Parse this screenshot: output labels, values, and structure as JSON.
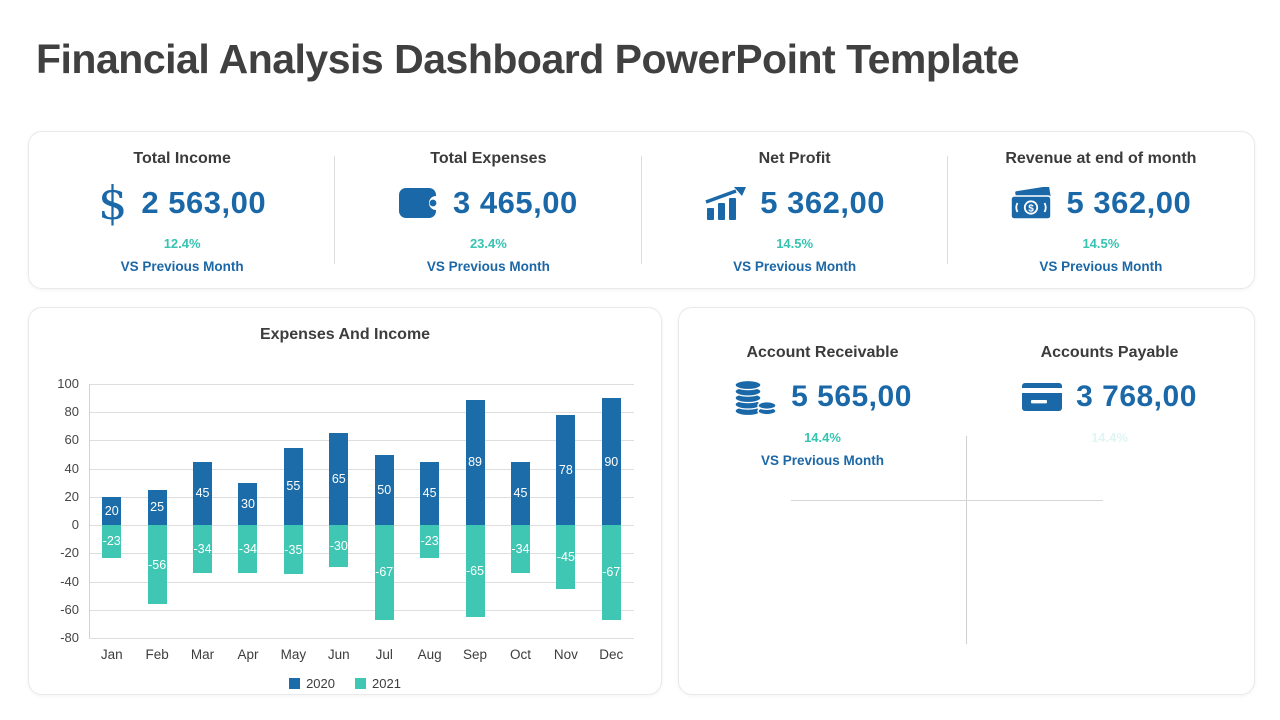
{
  "page": {
    "title": "Financial Analysis Dashboard PowerPoint Template"
  },
  "colors": {
    "primary_blue": "#1a68a8",
    "teal_accent": "#36c3b1",
    "bar_blue_2020": "#1b6ca8",
    "bar_teal_2021": "#40c7b4",
    "title_gray": "#404040"
  },
  "kpis": [
    {
      "label": "Total Income",
      "icon": "dollar-icon",
      "value": "2 563,00",
      "percent": "12.4%",
      "caption": "VS Previous Month"
    },
    {
      "label": "Total Expenses",
      "icon": "wallet-icon",
      "value": "3 465,00",
      "percent": "23.4%",
      "caption": "VS Previous Month"
    },
    {
      "label": "Net Profit",
      "icon": "growth-chart-icon",
      "value": "5 362,00",
      "percent": "14.5%",
      "caption": "VS Previous Month"
    },
    {
      "label": "Revenue at end of month",
      "icon": "banknotes-icon",
      "value": "5 362,00",
      "percent": "14.5%",
      "caption": "VS Previous Month"
    }
  ],
  "accounts": [
    {
      "label": "Account Receivable",
      "icon": "coins-icon",
      "value": "5 565,00",
      "percent": "14.4%",
      "caption": "VS Previous Month"
    },
    {
      "label": "Accounts Payable",
      "icon": "credit-card-icon",
      "value": "3 768,00",
      "percent": "14.4%",
      "caption": ""
    }
  ],
  "chart_data": {
    "type": "bar",
    "title": "Expenses And Income",
    "categories": [
      "Jan",
      "Feb",
      "Mar",
      "Apr",
      "May",
      "Jun",
      "Jul",
      "Aug",
      "Sep",
      "Oct",
      "Nov",
      "Dec"
    ],
    "series": [
      {
        "name": "2020",
        "color": "#1b6ca8",
        "values": [
          20,
          25,
          45,
          30,
          55,
          65,
          50,
          45,
          89,
          45,
          78,
          90
        ]
      },
      {
        "name": "2021",
        "color": "#40c7b4",
        "values": [
          -23,
          -56,
          -34,
          -34,
          -35,
          -30,
          -67,
          -23,
          -65,
          -34,
          -45,
          -67
        ]
      }
    ],
    "ylim": [
      -80,
      100
    ],
    "ytick_step": 20,
    "grid": true,
    "legend_position": "bottom",
    "data_labels": "inside-center"
  }
}
